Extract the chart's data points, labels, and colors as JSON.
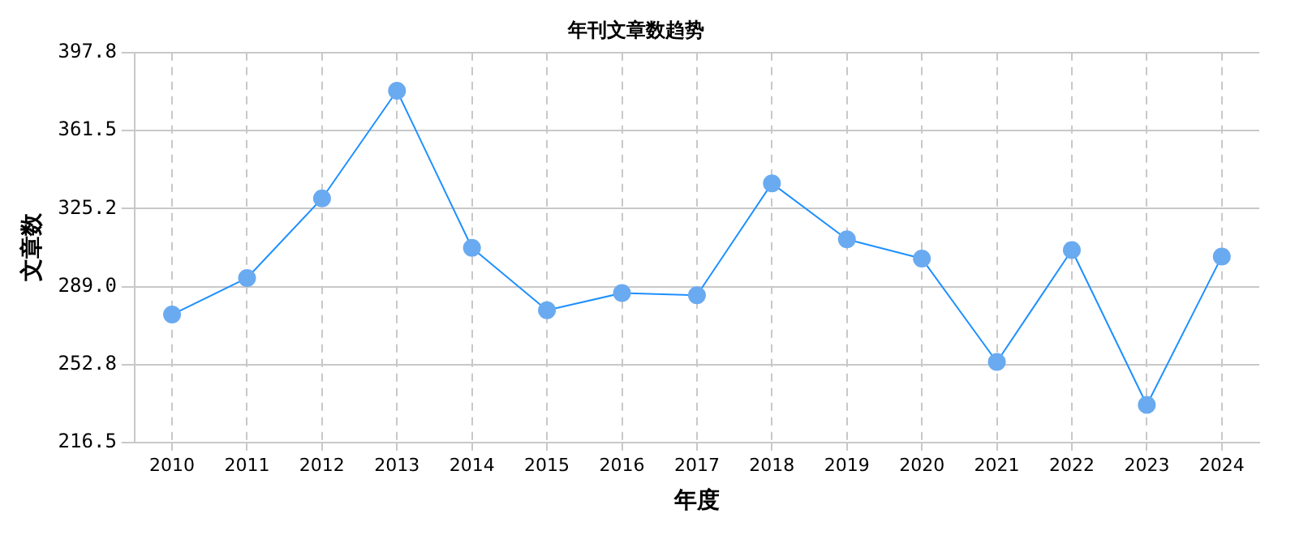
{
  "chart_data": {
    "type": "line",
    "title": "年刊文章数趋势",
    "xlabel": "年度",
    "ylabel": "文章数",
    "categories": [
      "2010",
      "2011",
      "2012",
      "2013",
      "2014",
      "2015",
      "2016",
      "2017",
      "2018",
      "2019",
      "2020",
      "2021",
      "2022",
      "2023",
      "2024"
    ],
    "series": [
      {
        "color": "#1e90ff",
        "values": [
          276,
          293,
          330,
          380,
          307,
          278,
          286,
          285,
          337,
          311,
          302,
          254,
          306,
          234,
          303
        ]
      }
    ],
    "ylim": [
      216.5,
      397.8
    ],
    "yticks": [
      216.5,
      252.8,
      {
        "value": 289,
        "label": "289.0"
      },
      325.2,
      361.5,
      397.8
    ],
    "grid": true,
    "marker": "circle",
    "line_style": "solid"
  }
}
